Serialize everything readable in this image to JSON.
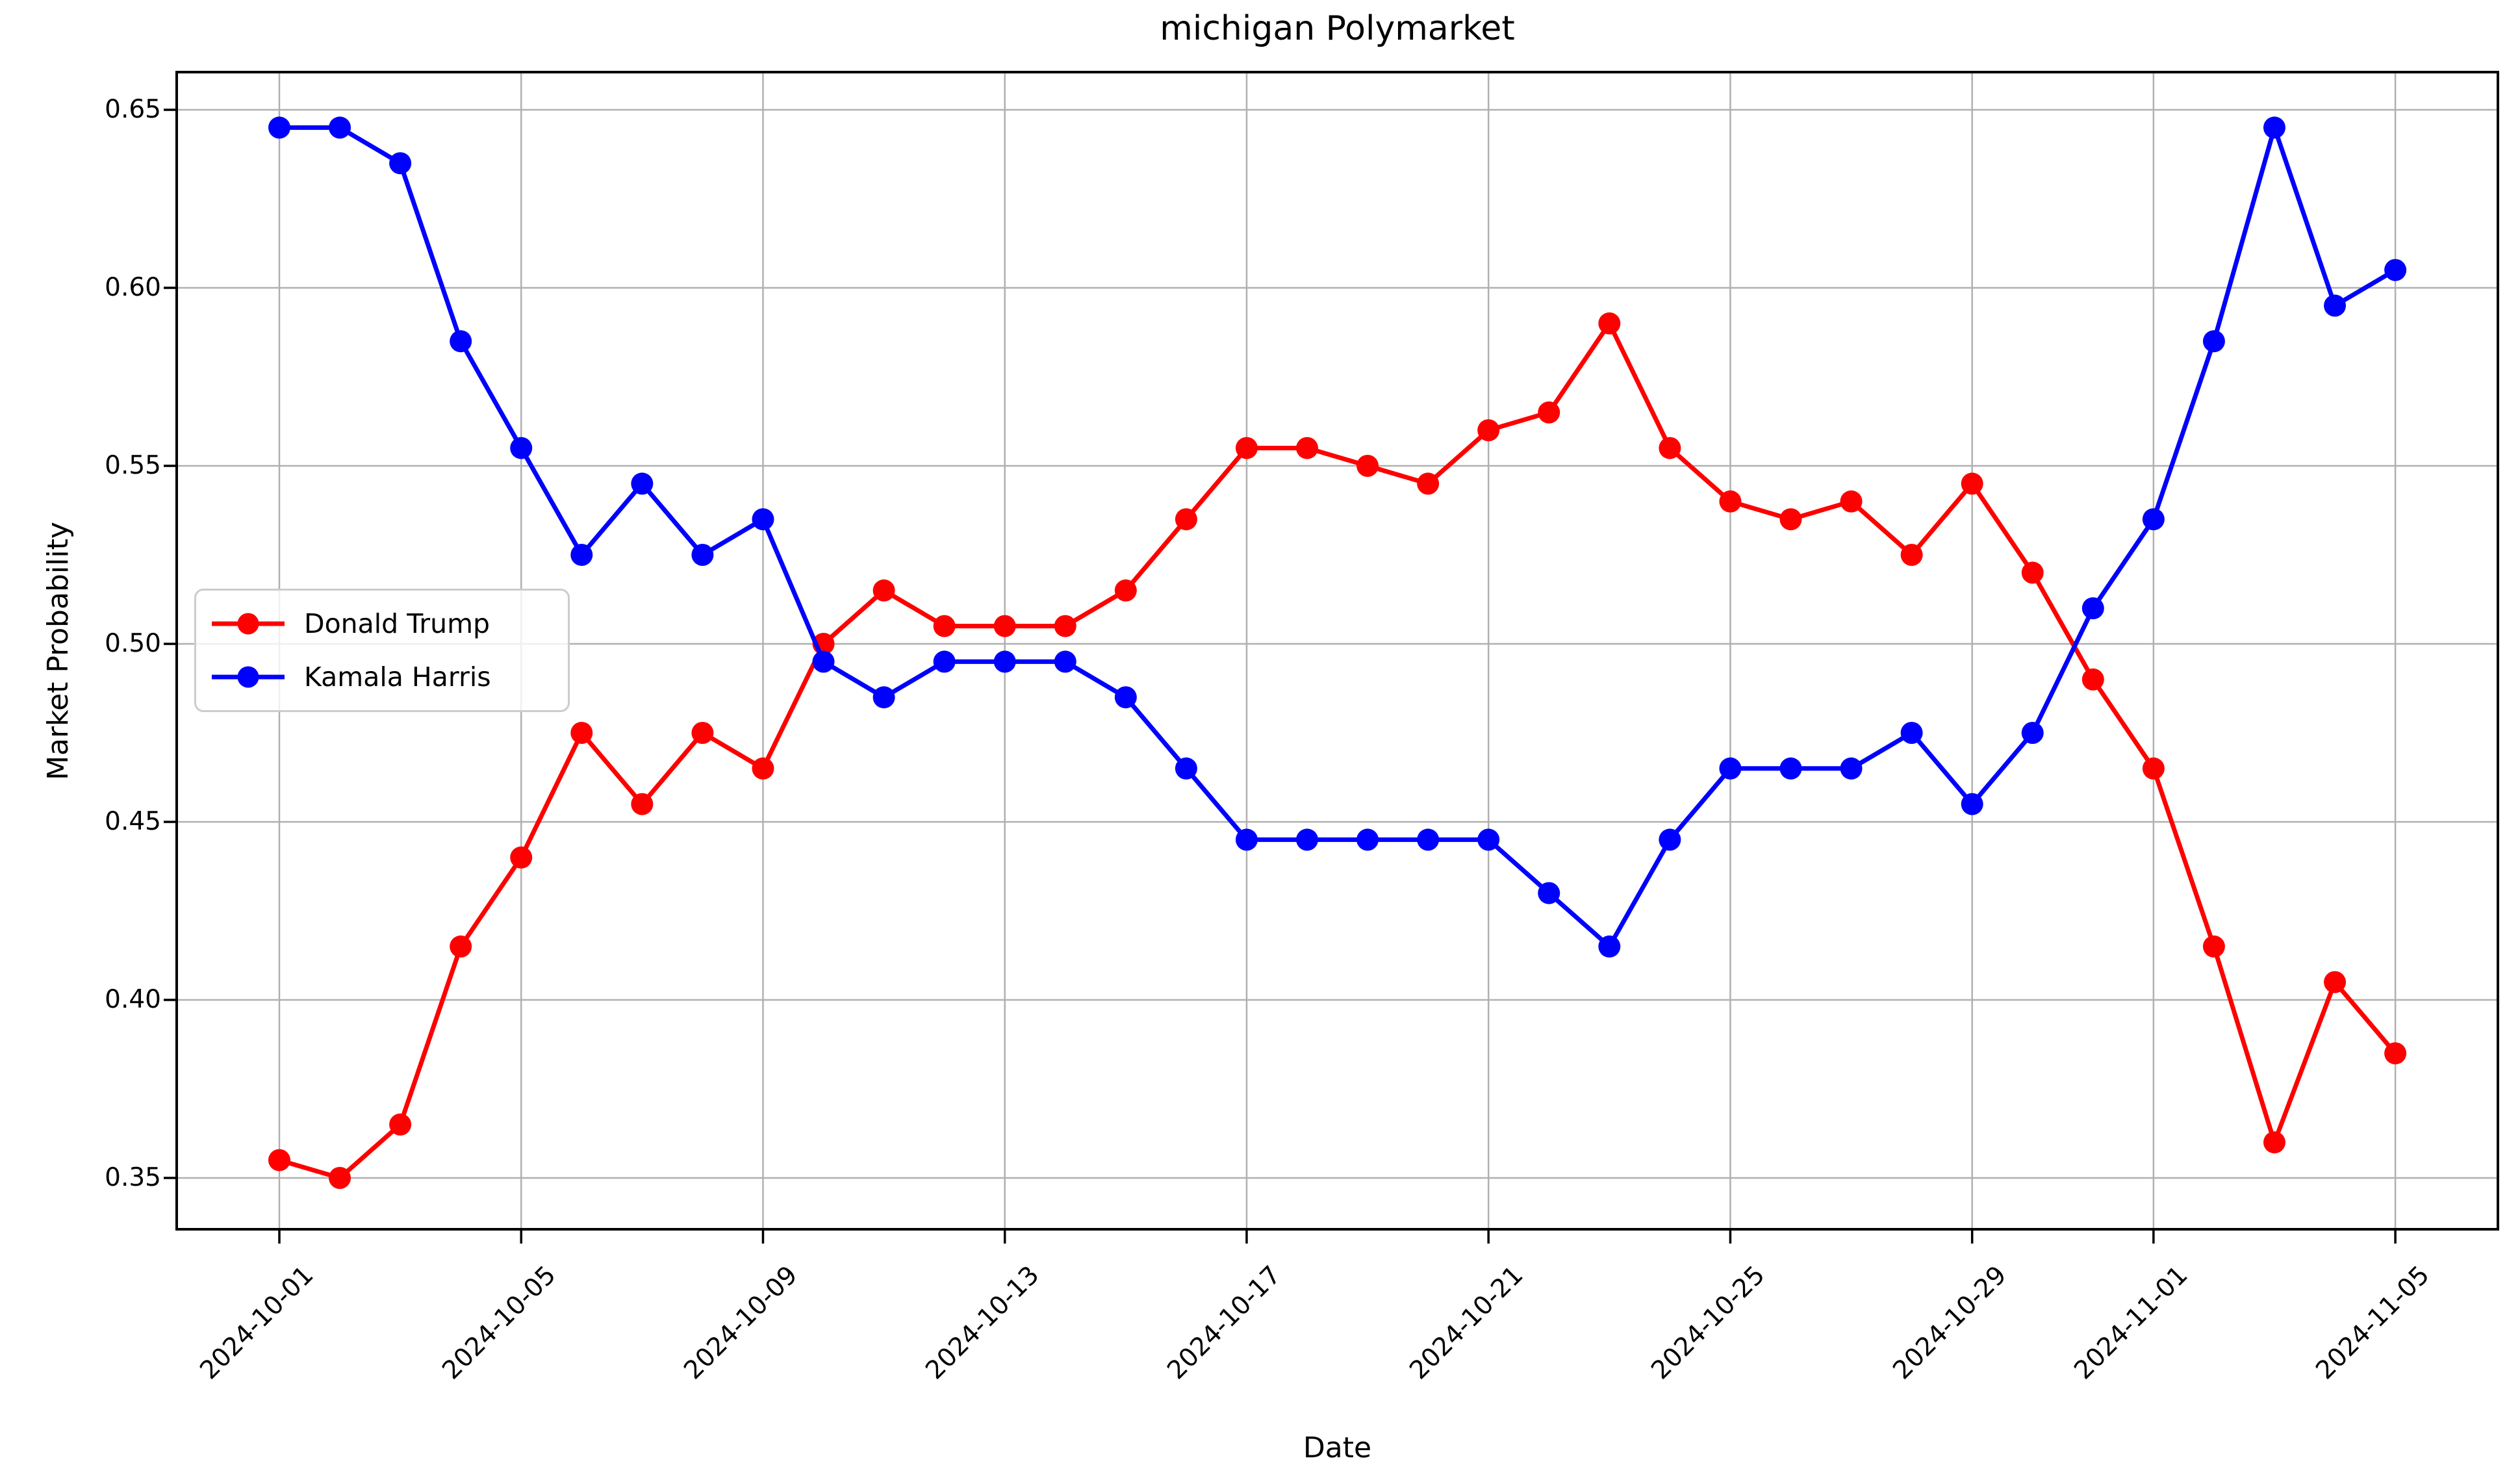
{
  "chart_data": {
    "type": "line",
    "title": "michigan Polymarket",
    "xlabel": "Date",
    "ylabel": "Market Probability",
    "categories": [
      "2024-10-01",
      "2024-10-02",
      "2024-10-03",
      "2024-10-04",
      "2024-10-05",
      "2024-10-06",
      "2024-10-07",
      "2024-10-08",
      "2024-10-09",
      "2024-10-10",
      "2024-10-11",
      "2024-10-12",
      "2024-10-13",
      "2024-10-14",
      "2024-10-15",
      "2024-10-16",
      "2024-10-17",
      "2024-10-18",
      "2024-10-19",
      "2024-10-20",
      "2024-10-21",
      "2024-10-22",
      "2024-10-23",
      "2024-10-24",
      "2024-10-25",
      "2024-10-26",
      "2024-10-27",
      "2024-10-28",
      "2024-10-29",
      "2024-10-30",
      "2024-10-31",
      "2024-11-01",
      "2024-11-02",
      "2024-11-03",
      "2024-11-04",
      "2024-11-05"
    ],
    "series": [
      {
        "name": "Donald Trump",
        "color": "#ff0000",
        "values": [
          0.355,
          0.35,
          0.365,
          0.415,
          0.44,
          0.475,
          0.455,
          0.475,
          0.465,
          0.5,
          0.515,
          0.505,
          0.505,
          0.505,
          0.515,
          0.535,
          0.555,
          0.555,
          0.55,
          0.545,
          0.56,
          0.565,
          0.59,
          0.555,
          0.54,
          0.535,
          0.54,
          0.525,
          0.545,
          0.52,
          0.49,
          0.465,
          0.415,
          0.36,
          0.405,
          0.385
        ]
      },
      {
        "name": "Kamala Harris",
        "color": "#0000ff",
        "values": [
          0.645,
          0.645,
          0.635,
          0.585,
          0.555,
          0.525,
          0.545,
          0.525,
          0.535,
          0.495,
          0.485,
          0.495,
          0.495,
          0.495,
          0.485,
          0.465,
          0.445,
          0.445,
          0.445,
          0.445,
          0.445,
          0.43,
          0.415,
          0.445,
          0.465,
          0.465,
          0.465,
          0.475,
          0.455,
          0.475,
          0.51,
          0.535,
          0.585,
          0.645,
          0.595,
          0.605
        ]
      }
    ],
    "x_tick_labels": [
      "2024-10-01",
      "2024-10-05",
      "2024-10-09",
      "2024-10-13",
      "2024-10-17",
      "2024-10-21",
      "2024-10-25",
      "2024-10-29",
      "2024-11-01",
      "2024-11-05"
    ],
    "y_ticks": [
      {
        "label": "0.65",
        "value": 0.65
      },
      {
        "label": "0.60",
        "value": 0.6
      },
      {
        "label": "0.55",
        "value": 0.55
      },
      {
        "label": "0.50",
        "value": 0.5
      },
      {
        "label": "0.45",
        "value": 0.45
      },
      {
        "label": "0.40",
        "value": 0.4
      },
      {
        "label": "0.35",
        "value": 0.35
      }
    ],
    "ylim": [
      0.336,
      0.661
    ],
    "grid": true,
    "grid_color": "#b0b0b0",
    "legend_position": "left center",
    "marker": "circle",
    "background_color": "#ffffff"
  }
}
